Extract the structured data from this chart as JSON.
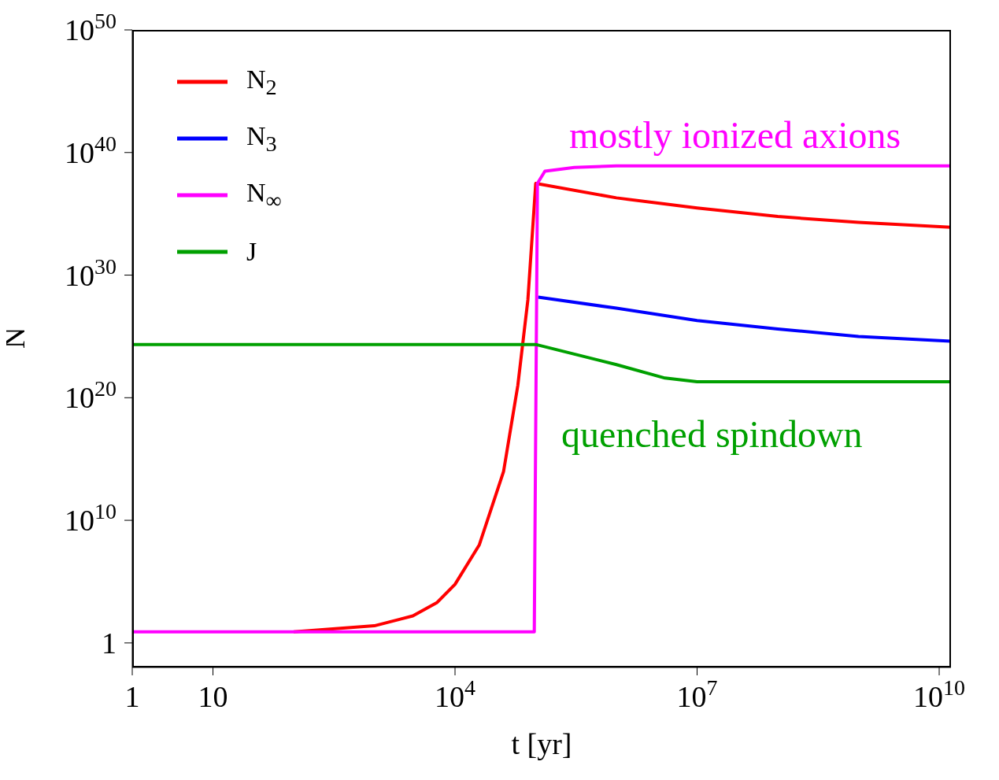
{
  "chart_data": {
    "type": "line",
    "xlabel": "t [yr]",
    "ylabel": "N",
    "log": "xy",
    "xlim": [
      1,
      14000000000.0
    ],
    "xticks": [
      1,
      10,
      {
        "value": 10000,
        "label": "10$^{4}$"
      },
      {
        "value": 10000000,
        "label": "10$^{7}$"
      },
      {
        "value": 10000000000,
        "label": "10$^{10}$"
      }
    ],
    "ylim": [
      0.01,
      1e+50
    ],
    "yticks": [
      1,
      {
        "value": 10000000000.0,
        "label": "10$^{10}$"
      },
      {
        "value": 1e+20,
        "label": "10$^{20}$"
      },
      {
        "value": 1e+30,
        "label": "10$^{30}$"
      },
      {
        "value": 1e+40,
        "label": "10$^{40}$"
      },
      {
        "value": 1e+50,
        "label": "10$^{50}$"
      }
    ],
    "grid": false,
    "legend": "top left",
    "line_style": "solid",
    "marker": "none",
    "series": [
      {
        "name": "N$_{2}$",
        "color": "#ff0000",
        "x": [
          100,
          1000,
          3000,
          6000,
          10000,
          20000,
          40000,
          60000,
          80000,
          100000,
          1000000,
          10000000,
          100000000,
          1000000000,
          14000000000
        ],
        "values": [
          8,
          25,
          160,
          2000,
          60000.0,
          100000000.0,
          100000000000000.0,
          1e+21,
          1e+28,
          3e+37,
          2e+36,
          3e+35,
          6e+34,
          2e+34,
          8e+33
        ]
      },
      {
        "name": "N$_{3}$",
        "color": "#0000ff",
        "x": [
          107000,
          1000000,
          10000000,
          100000000,
          1000000000,
          14000000000
        ],
        "values": [
          1.6e+28,
          2e+27,
          2e+26,
          4e+25,
          1e+25,
          4e+24
        ]
      },
      {
        "name": "N$_{∞}$",
        "color": "#ff00ff",
        "x": [
          1,
          96000,
          105000,
          130000,
          300000,
          1000000,
          14000000000
        ],
        "values": [
          8,
          8,
          3e+37,
          3e+38,
          6e+38,
          8e+38,
          8e+38
        ]
      },
      {
        "name": "J",
        "color": "#00a000",
        "x": [
          1,
          100000,
          1000000,
          4000000,
          10000000,
          100000000,
          14000000000
        ],
        "values": [
          2.2e+24,
          2.2e+24,
          5e+22,
          4e+21,
          2e+21,
          2e+21,
          2e+21
        ]
      }
    ],
    "annotations": [
      "mostly ionized axions",
      "quenched spindown"
    ]
  }
}
